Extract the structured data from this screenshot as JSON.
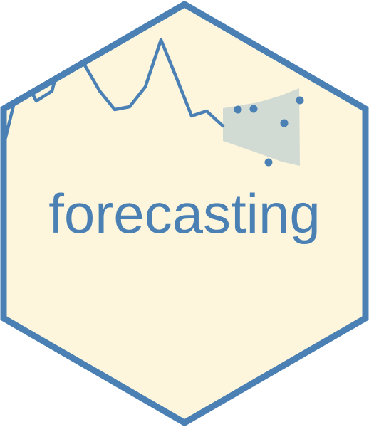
{
  "sticker": {
    "title": "forecasting",
    "colors": {
      "fill": "#fdf6dd",
      "border": "#4a80b4",
      "line": "#4a80b4",
      "band": "#d2dbd3",
      "points": "#4a80b4"
    }
  }
}
